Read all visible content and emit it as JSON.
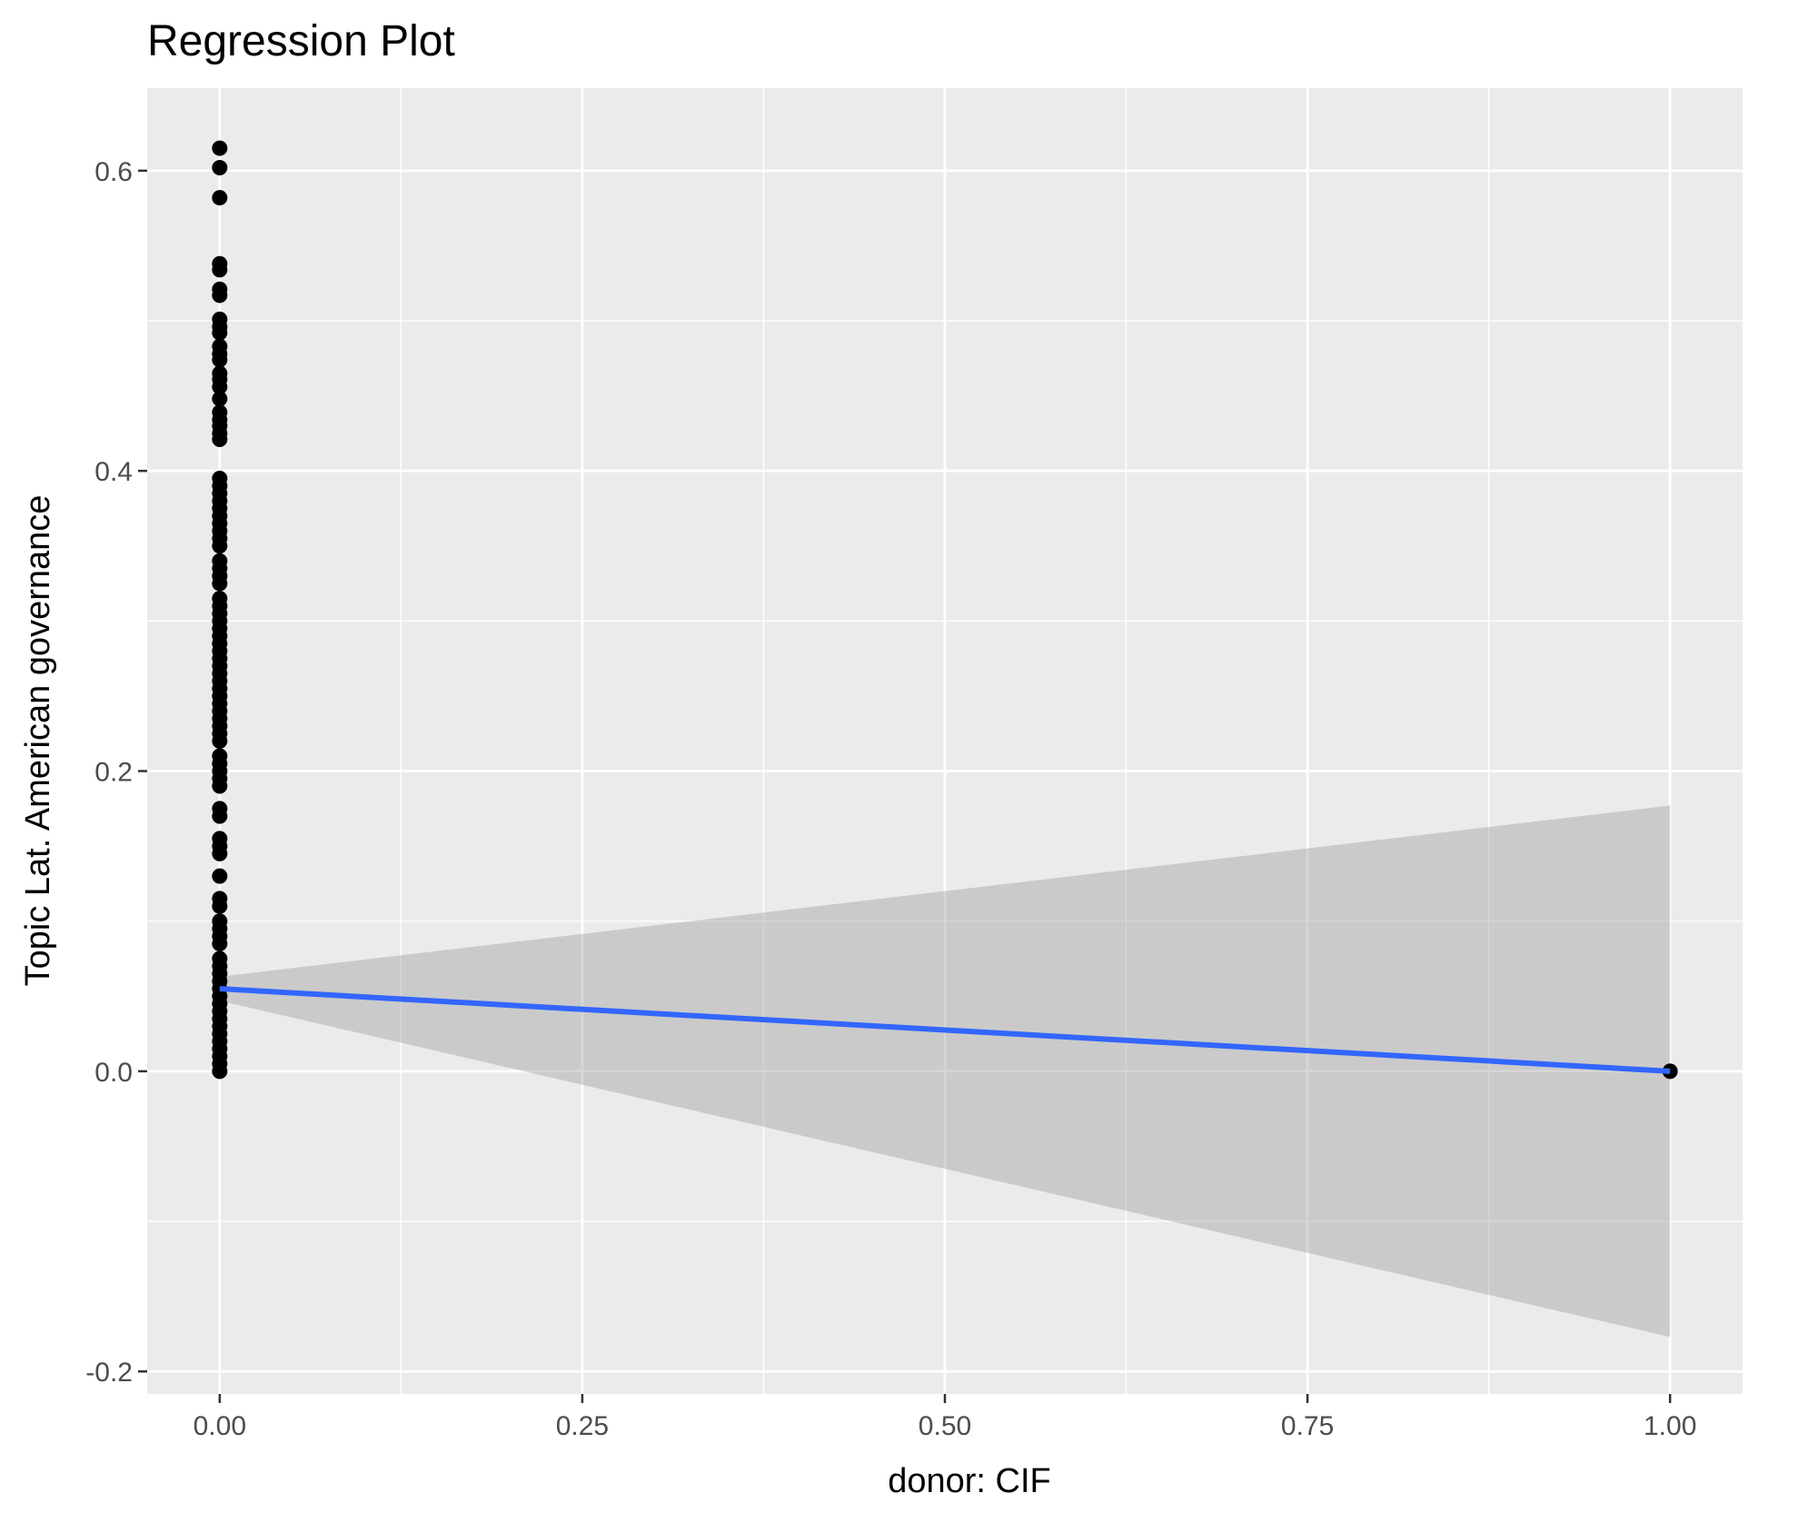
{
  "chart_data": {
    "type": "scatter",
    "title": "Regression Plot",
    "xlabel": "donor: CIF",
    "ylabel": "Topic Lat. American governance",
    "xlim": [
      -0.05,
      1.05
    ],
    "ylim": [
      -0.215,
      0.655
    ],
    "x_ticks": [
      0.0,
      0.25,
      0.5,
      0.75,
      1.0
    ],
    "x_tick_labels": [
      "0.00",
      "0.25",
      "0.50",
      "0.75",
      "1.00"
    ],
    "y_ticks": [
      -0.2,
      0.0,
      0.2,
      0.4,
      0.6
    ],
    "y_tick_labels": [
      "-0.2",
      "0.0",
      "0.2",
      "0.4",
      "0.6"
    ],
    "grid": true,
    "colors": {
      "panel": "#ebebeb",
      "grid": "#ffffff",
      "points": "#000000",
      "fit_line": "#3366ff",
      "ci_band": "#999999"
    },
    "points": {
      "x0_y": [
        0.615,
        0.602,
        0.582,
        0.538,
        0.534,
        0.521,
        0.517,
        0.501,
        0.496,
        0.492,
        0.483,
        0.478,
        0.474,
        0.465,
        0.461,
        0.456,
        0.448,
        0.439,
        0.434,
        0.43,
        0.425,
        0.421,
        0.395,
        0.39,
        0.385,
        0.38,
        0.375,
        0.37,
        0.365,
        0.36,
        0.355,
        0.35,
        0.34,
        0.335,
        0.33,
        0.325,
        0.315,
        0.31,
        0.305,
        0.3,
        0.295,
        0.29,
        0.285,
        0.28,
        0.275,
        0.27,
        0.265,
        0.26,
        0.255,
        0.25,
        0.245,
        0.24,
        0.235,
        0.23,
        0.225,
        0.22,
        0.21,
        0.205,
        0.2,
        0.195,
        0.19,
        0.175,
        0.17,
        0.155,
        0.15,
        0.145,
        0.13,
        0.115,
        0.11,
        0.1,
        0.095,
        0.09,
        0.085,
        0.075,
        0.07,
        0.065,
        0.06,
        0.055,
        0.05,
        0.045,
        0.04,
        0.035,
        0.03,
        0.025,
        0.02,
        0.015,
        0.01,
        0.005,
        0.0
      ],
      "x1_y": [
        0.0
      ]
    },
    "fit": {
      "x": [
        0.0,
        1.0
      ],
      "y": [
        0.055,
        0.0
      ]
    },
    "ci_band": {
      "x": [
        0.0,
        1.0
      ],
      "upper": [
        0.063,
        0.177
      ],
      "lower": [
        0.047,
        -0.177
      ]
    }
  }
}
